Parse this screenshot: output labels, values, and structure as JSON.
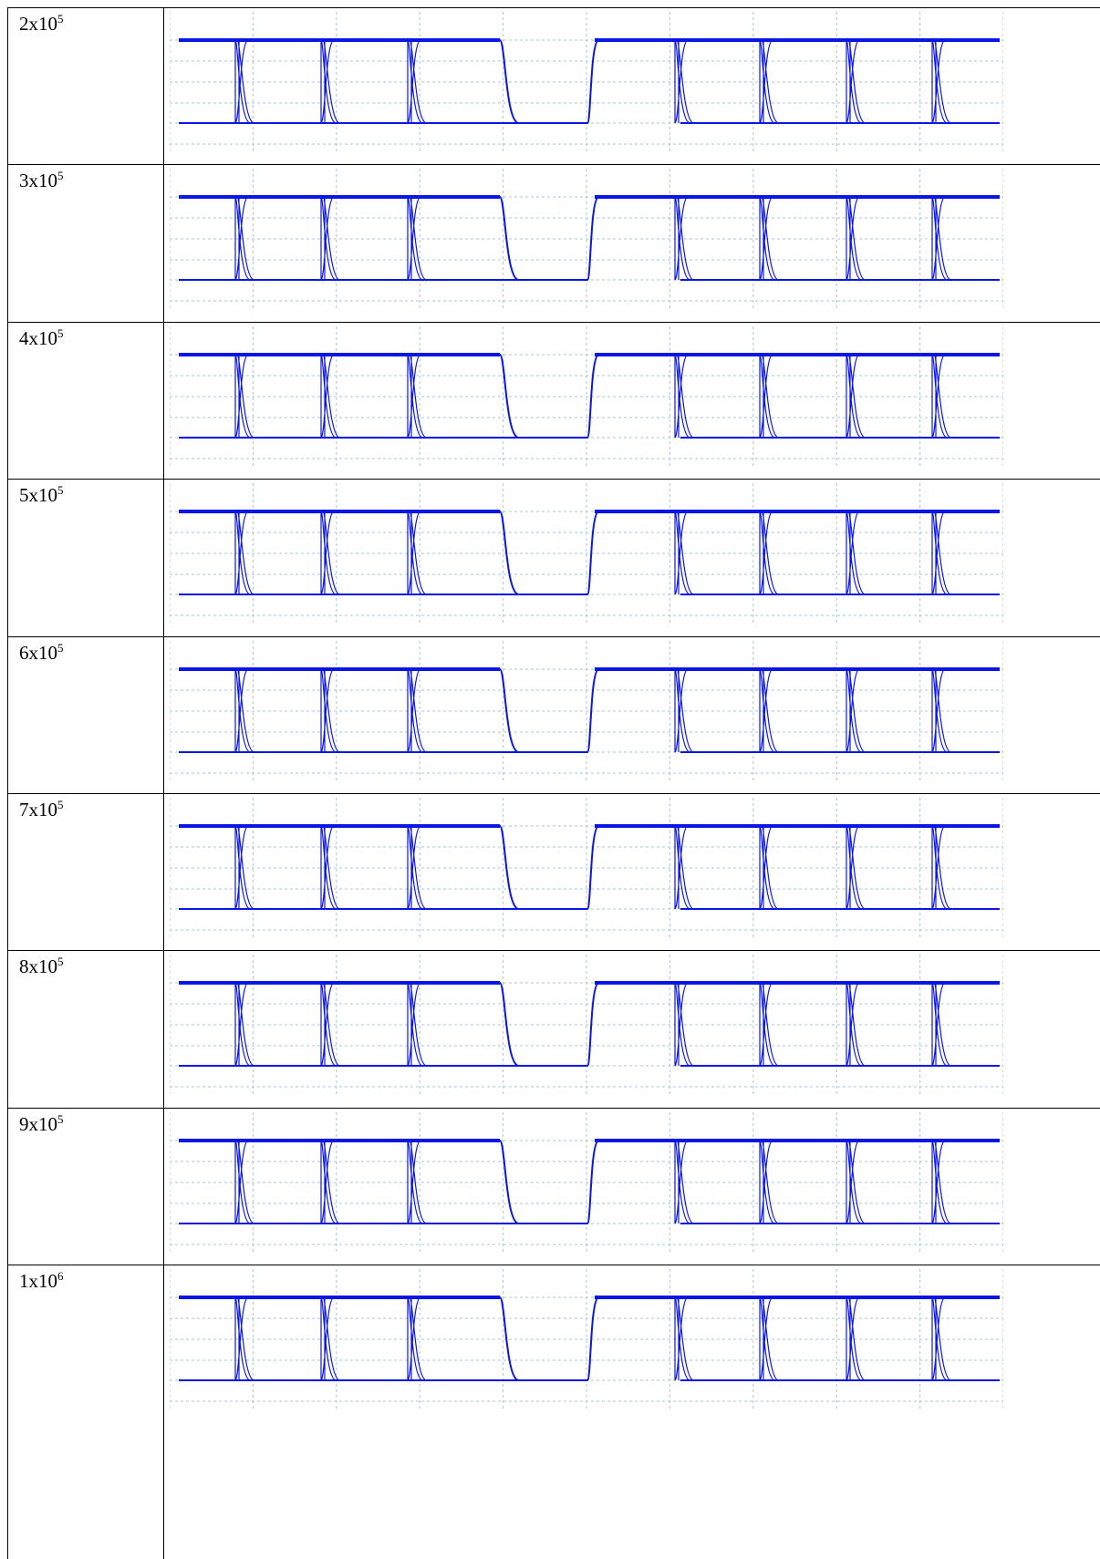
{
  "table": {
    "rows": [
      {
        "base": "2x10",
        "exponent": "5"
      },
      {
        "base": "3x10",
        "exponent": "5"
      },
      {
        "base": "4x10",
        "exponent": "5"
      },
      {
        "base": "5x10",
        "exponent": "5"
      },
      {
        "base": "6x10",
        "exponent": "5"
      },
      {
        "base": "7x10",
        "exponent": "5"
      },
      {
        "base": "8x10",
        "exponent": "5"
      },
      {
        "base": "9x10",
        "exponent": "5"
      },
      {
        "base": "1x10",
        "exponent": "6"
      }
    ]
  }
}
